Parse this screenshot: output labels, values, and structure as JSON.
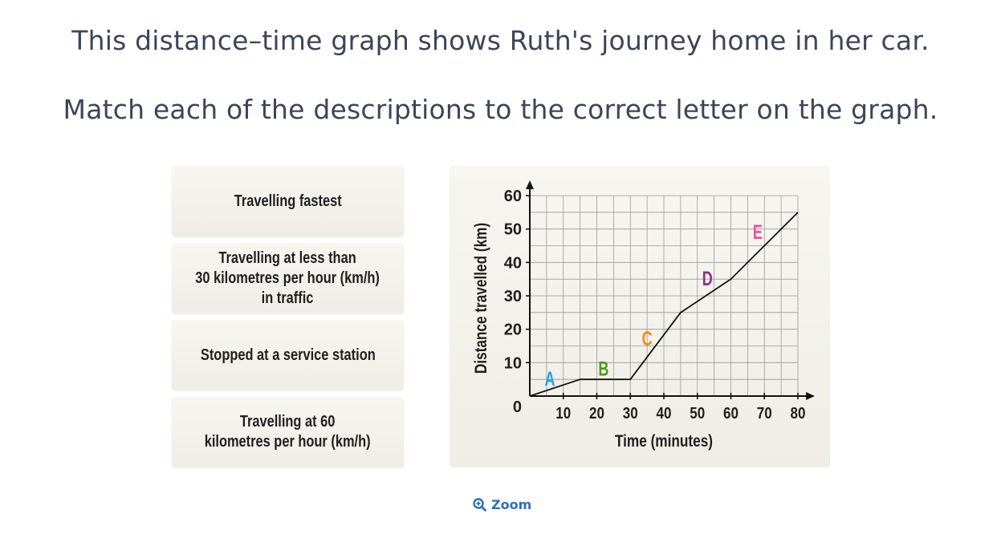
{
  "question": {
    "line1": "This distance–time graph shows Ruth's journey home in her car.",
    "line2": "Match each of the descriptions to the correct letter on the graph."
  },
  "cards": [
    {
      "label": "Travelling fastest"
    },
    {
      "label": "Travelling at less than\n30 kilometres per hour (km/h)\nin traffic"
    },
    {
      "label": "Stopped at a service station"
    },
    {
      "label": "Travelling at 60\nkilometres per hour (km/h)"
    }
  ],
  "zoom": {
    "label": "Zoom",
    "icon": "zoom-in-icon"
  },
  "chart_data": {
    "type": "line",
    "xlabel": "Time (minutes)",
    "ylabel": "Distance travelled (km)",
    "xlim": [
      0,
      80
    ],
    "ylim": [
      0,
      60
    ],
    "x_ticks": [
      "10",
      "20",
      "30",
      "40",
      "50",
      "60",
      "70",
      "80"
    ],
    "y_ticks": [
      "10",
      "20",
      "30",
      "40",
      "50",
      "60"
    ],
    "origin_label": "0",
    "grid": true,
    "series": [
      {
        "x": [
          0,
          15,
          30,
          45,
          60,
          80
        ],
        "y": [
          0,
          5,
          5,
          25,
          35,
          55
        ]
      }
    ],
    "segment_labels": [
      {
        "text": "A",
        "x": 6,
        "y": 5,
        "color": "#1ea7e0"
      },
      {
        "text": "B",
        "x": 22,
        "y": 8,
        "color": "#4a9a1a"
      },
      {
        "text": "C",
        "x": 35,
        "y": 17,
        "color": "#f28a1a"
      },
      {
        "text": "D",
        "x": 53,
        "y": 35,
        "color": "#8b2f8a"
      },
      {
        "text": "E",
        "x": 68,
        "y": 49,
        "color": "#e94e9a"
      }
    ]
  }
}
